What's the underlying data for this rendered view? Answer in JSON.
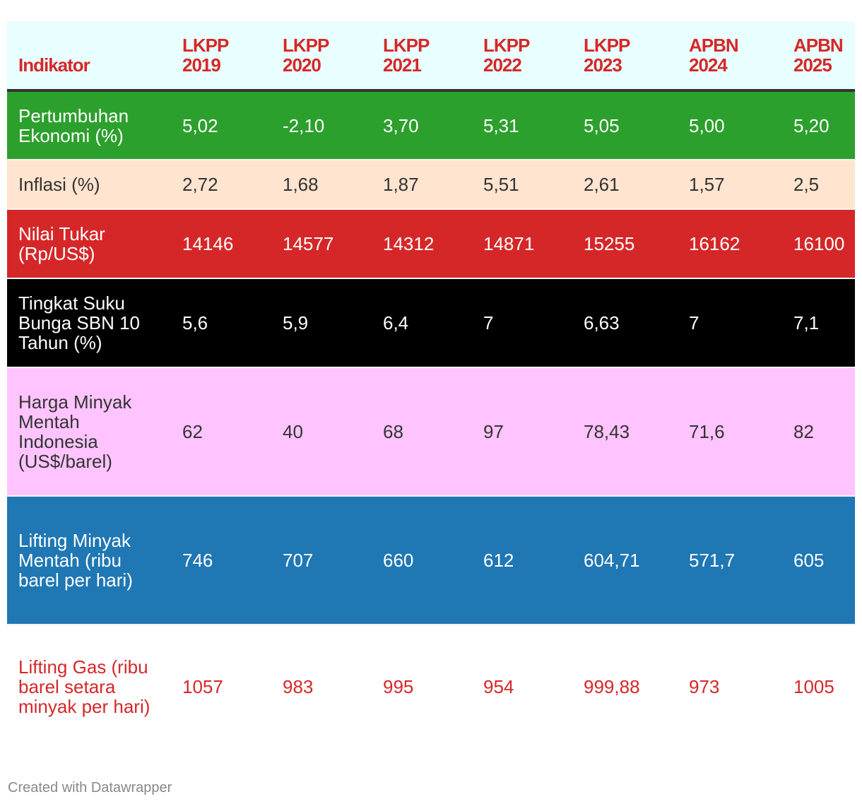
{
  "chart_data": {
    "type": "table",
    "columns": [
      {
        "line1": "Indikator",
        "line2": ""
      },
      {
        "line1": "LKPP",
        "line2": "2019"
      },
      {
        "line1": "LKPP",
        "line2": "2020"
      },
      {
        "line1": "LKPP",
        "line2": "2021"
      },
      {
        "line1": "LKPP",
        "line2": "2022"
      },
      {
        "line1": "LKPP",
        "line2": "2023"
      },
      {
        "line1": "APBN",
        "line2": "2024"
      },
      {
        "line1": "APBN",
        "line2": "2025"
      }
    ],
    "rows": [
      {
        "label": "Pertumbuhan Ekonomi (%)",
        "values": [
          "5,02",
          "-2,10",
          "3,70",
          "5,31",
          "5,05",
          "5,00",
          "5,20"
        ],
        "bg": "#2ca02c",
        "color": "#ffffff"
      },
      {
        "label": "Inflasi (%)",
        "values": [
          "2,72",
          "1,68",
          "1,87",
          "5,51",
          "2,61",
          "1,57",
          "2,5"
        ],
        "bg": "#ffe4cf",
        "color": "#333333"
      },
      {
        "label": "Nilai Tukar (Rp/US$)",
        "values": [
          "14146",
          "14577",
          "14312",
          "14871",
          "15255",
          "16162",
          "16100"
        ],
        "bg": "#d62728",
        "color": "#ffffff"
      },
      {
        "label": "Tingkat Suku Bunga SBN 10 Tahun (%)",
        "values": [
          "5,6",
          "5,9",
          "6,4",
          "7",
          "6,63",
          "7",
          "7,1"
        ],
        "bg": "#000000",
        "color": "#ffffff"
      },
      {
        "label": "Harga Minyak Mentah Indonesia (US$/barel)",
        "values": [
          "62",
          "40",
          "68",
          "97",
          "78,43",
          "71,6",
          "82"
        ],
        "bg": "#ffc4ff",
        "color": "#333333"
      },
      {
        "label": "Lifting Minyak Mentah (ribu barel per hari)",
        "values": [
          "746",
          "707",
          "660",
          "612",
          "604,71",
          "571,7",
          "605"
        ],
        "bg": "#1f77b4",
        "color": "#ffffff"
      },
      {
        "label": "Lifting Gas (ribu barel setara minyak per hari)",
        "values": [
          "1057",
          "983",
          "995",
          "954",
          "999,88",
          "973",
          "1005"
        ],
        "bg": "#ffffff",
        "color": "#d62728"
      }
    ],
    "header_bg": "#e8feff",
    "header_color": "#d62728"
  },
  "footer": {
    "credit": "Created with Datawrapper"
  },
  "colors": {
    "header_border": "#333333",
    "credit": "#888888"
  }
}
